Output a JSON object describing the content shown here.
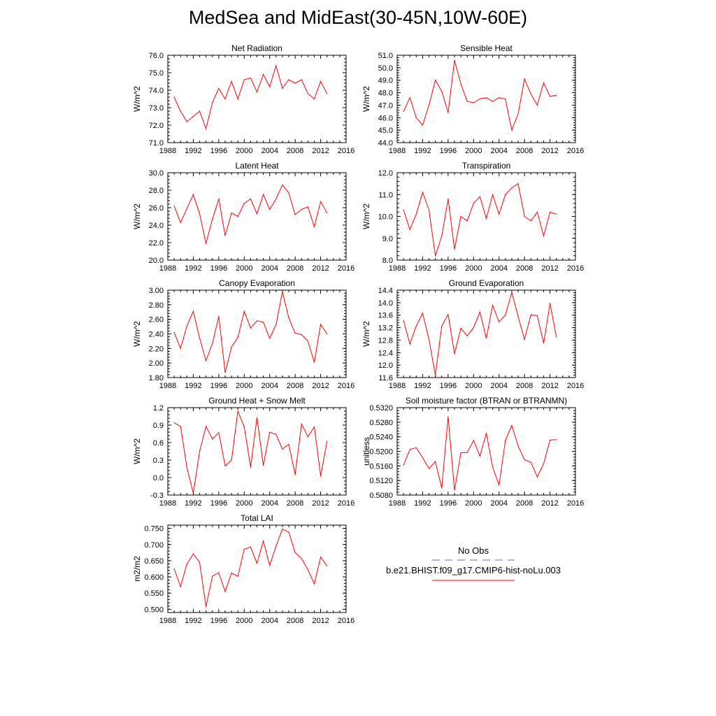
{
  "title": "MedSea and MidEast(30-45N,10W-60E)",
  "colors": {
    "model_line": "#ff0000",
    "obs_line": "#6666aa",
    "axes": "#000000"
  },
  "legend": {
    "obs_label": "No Obs",
    "model_label": "b.e21.BHIST.f09_g17.CMIP6-hist-noLu.003"
  },
  "chart_data": [
    {
      "type": "line",
      "title": "Net Radiation",
      "ylabel": "W/m^2",
      "xlim": [
        1988,
        2016
      ],
      "ylim": [
        71.0,
        76.0
      ],
      "xticks": [
        "1988",
        "1992",
        "1996",
        "2000",
        "2004",
        "2008",
        "2012",
        "2016"
      ],
      "yticks": [
        "71.0",
        "72.0",
        "73.0",
        "74.0",
        "75.0",
        "76.0"
      ],
      "series": [
        {
          "x": [
            1989,
            1990,
            1991,
            1992,
            1993,
            1994,
            1995,
            1996,
            1997,
            1998,
            1999,
            2000,
            2001,
            2002,
            2003,
            2004,
            2005,
            2006,
            2007,
            2008,
            2009,
            2010,
            2011,
            2012,
            2013
          ],
          "values": [
            73.6,
            72.8,
            72.2,
            72.5,
            72.8,
            71.8,
            73.3,
            74.1,
            73.5,
            74.5,
            73.5,
            74.6,
            74.7,
            73.9,
            74.9,
            74.2,
            75.4,
            74.1,
            74.6,
            74.4,
            74.6,
            73.8,
            73.5,
            74.5,
            73.8
          ]
        }
      ]
    },
    {
      "type": "line",
      "title": "Sensible Heat",
      "ylabel": "W/m^2",
      "xlim": [
        1988,
        2016
      ],
      "ylim": [
        44.0,
        51.0
      ],
      "xticks": [
        "1988",
        "1992",
        "1996",
        "2000",
        "2004",
        "2008",
        "2012",
        "2016"
      ],
      "yticks": [
        "44.0",
        "45.0",
        "46.0",
        "47.0",
        "48.0",
        "49.0",
        "50.0",
        "51.0"
      ],
      "series": [
        {
          "x": [
            1989,
            1990,
            1991,
            1992,
            1993,
            1994,
            1995,
            1996,
            1997,
            1998,
            1999,
            2000,
            2001,
            2002,
            2003,
            2004,
            2005,
            2006,
            2007,
            2008,
            2009,
            2010,
            2011,
            2012,
            2013
          ],
          "values": [
            46.5,
            47.6,
            46.0,
            45.4,
            47.0,
            49.0,
            48.1,
            46.4,
            50.6,
            48.7,
            47.3,
            47.2,
            47.5,
            47.6,
            47.3,
            47.6,
            47.5,
            45.0,
            46.3,
            49.1,
            47.9,
            47.0,
            48.8,
            47.7,
            47.8
          ]
        }
      ]
    },
    {
      "type": "line",
      "title": "Latent Heat",
      "ylabel": "W/m^2",
      "xlim": [
        1988,
        2016
      ],
      "ylim": [
        20.0,
        30.0
      ],
      "xticks": [
        "1988",
        "1992",
        "1996",
        "2000",
        "2004",
        "2008",
        "2012",
        "2016"
      ],
      "yticks": [
        "20.0",
        "22.0",
        "24.0",
        "26.0",
        "28.0",
        "30.0"
      ],
      "series": [
        {
          "x": [
            1989,
            1990,
            1991,
            1992,
            1993,
            1994,
            1995,
            1996,
            1997,
            1998,
            1999,
            2000,
            2001,
            2002,
            2003,
            2004,
            2005,
            2006,
            2007,
            2008,
            2009,
            2010,
            2011,
            2012,
            2013
          ],
          "values": [
            26.2,
            24.3,
            25.9,
            27.5,
            25.3,
            21.9,
            24.7,
            27.0,
            22.8,
            25.4,
            25.0,
            26.5,
            27.0,
            25.3,
            27.5,
            25.8,
            27.0,
            28.6,
            27.7,
            25.2,
            25.8,
            26.1,
            23.8,
            26.7,
            25.4
          ]
        }
      ]
    },
    {
      "type": "line",
      "title": "Transpiration",
      "ylabel": "W/m^2",
      "xlim": [
        1988,
        2016
      ],
      "ylim": [
        8.0,
        12.0
      ],
      "xticks": [
        "1988",
        "1992",
        "1996",
        "2000",
        "2004",
        "2008",
        "2012",
        "2016"
      ],
      "yticks": [
        "8.0",
        "9.0",
        "10.0",
        "11.0",
        "12.0"
      ],
      "series": [
        {
          "x": [
            1989,
            1990,
            1991,
            1992,
            1993,
            1994,
            1995,
            1996,
            1997,
            1998,
            1999,
            2000,
            2001,
            2002,
            2003,
            2004,
            2005,
            2006,
            2007,
            2008,
            2009,
            2010,
            2011,
            2012,
            2013
          ],
          "values": [
            10.3,
            9.4,
            10.1,
            11.1,
            10.3,
            8.2,
            9.1,
            10.8,
            8.5,
            10.0,
            9.8,
            10.6,
            10.9,
            9.9,
            11.0,
            10.1,
            11.0,
            11.3,
            11.5,
            10.0,
            9.8,
            10.2,
            9.1,
            10.2,
            10.1
          ]
        }
      ]
    },
    {
      "type": "line",
      "title": "Canopy Evaporation",
      "ylabel": "W/m^2",
      "xlim": [
        1988,
        2016
      ],
      "ylim": [
        1.8,
        3.0
      ],
      "xticks": [
        "1988",
        "1992",
        "1996",
        "2000",
        "2004",
        "2008",
        "2012",
        "2016"
      ],
      "yticks": [
        "1.80",
        "2.00",
        "2.20",
        "2.40",
        "2.60",
        "2.80",
        "3.00"
      ],
      "series": [
        {
          "x": [
            1989,
            1990,
            1991,
            1992,
            1993,
            1994,
            1995,
            1996,
            1997,
            1998,
            1999,
            2000,
            2001,
            2002,
            2003,
            2004,
            2005,
            2006,
            2007,
            2008,
            2009,
            2010,
            2011,
            2012,
            2013
          ],
          "values": [
            2.42,
            2.2,
            2.51,
            2.71,
            2.34,
            2.03,
            2.27,
            2.64,
            1.87,
            2.22,
            2.35,
            2.71,
            2.48,
            2.58,
            2.56,
            2.34,
            2.53,
            2.98,
            2.62,
            2.41,
            2.39,
            2.3,
            2.01,
            2.53,
            2.4
          ]
        }
      ]
    },
    {
      "type": "line",
      "title": "Ground Evaporation",
      "ylabel": "W/m^2",
      "xlim": [
        1988,
        2016
      ],
      "ylim": [
        11.6,
        14.4
      ],
      "xticks": [
        "1988",
        "1992",
        "1996",
        "2000",
        "2004",
        "2008",
        "2012",
        "2016"
      ],
      "yticks": [
        "11.6",
        "12.0",
        "12.4",
        "12.8",
        "13.2",
        "13.6",
        "14.0",
        "14.4"
      ],
      "series": [
        {
          "x": [
            1989,
            1990,
            1991,
            1992,
            1993,
            1994,
            1995,
            1996,
            1997,
            1998,
            1999,
            2000,
            2001,
            2002,
            2003,
            2004,
            2005,
            2006,
            2007,
            2008,
            2009,
            2010,
            2011,
            2012,
            2013
          ],
          "values": [
            13.43,
            12.68,
            13.25,
            13.66,
            12.82,
            11.68,
            13.25,
            13.62,
            12.36,
            13.18,
            12.94,
            13.2,
            13.7,
            12.86,
            13.92,
            13.38,
            13.6,
            14.33,
            13.56,
            12.82,
            13.61,
            13.58,
            12.7,
            13.98,
            12.9
          ]
        }
      ]
    },
    {
      "type": "line",
      "title": "Ground Heat + Snow Melt",
      "ylabel": "W/m^2",
      "xlim": [
        1988,
        2016
      ],
      "ylim": [
        -0.3,
        1.2
      ],
      "xticks": [
        "1988",
        "1992",
        "1996",
        "2000",
        "2004",
        "2008",
        "2012",
        "2016"
      ],
      "yticks": [
        "-0.3",
        "0.0",
        "0.3",
        "0.6",
        "0.9",
        "1.2"
      ],
      "series": [
        {
          "x": [
            1989,
            1990,
            1991,
            1992,
            1993,
            1994,
            1995,
            1996,
            1997,
            1998,
            1999,
            2000,
            2001,
            2002,
            2003,
            2004,
            2005,
            2006,
            2007,
            2008,
            2009,
            2010,
            2011,
            2012,
            2013
          ],
          "values": [
            0.94,
            0.88,
            0.17,
            -0.27,
            0.45,
            0.88,
            0.66,
            0.77,
            0.2,
            0.3,
            1.14,
            0.87,
            0.18,
            1.03,
            0.21,
            0.78,
            0.74,
            0.49,
            0.57,
            0.05,
            0.92,
            0.7,
            0.87,
            0.03,
            0.62
          ]
        }
      ]
    },
    {
      "type": "line",
      "title": "Soil moisture factor (BTRAN or BTRANMN)",
      "ylabel": "unitless",
      "xlim": [
        1988,
        2016
      ],
      "ylim": [
        0.508,
        0.532
      ],
      "xticks": [
        "1988",
        "1992",
        "1996",
        "2000",
        "2004",
        "2008",
        "2012",
        "2016"
      ],
      "yticks": [
        "0.5080",
        "0.5120",
        "0.5160",
        "0.5200",
        "0.5240",
        "0.5280",
        "0.5320"
      ],
      "series": [
        {
          "x": [
            1989,
            1990,
            1991,
            1992,
            1993,
            1994,
            1995,
            1996,
            1997,
            1998,
            1999,
            2000,
            2001,
            2002,
            2003,
            2004,
            2005,
            2006,
            2007,
            2008,
            2009,
            2010,
            2011,
            2012,
            2013
          ],
          "values": [
            0.5162,
            0.5205,
            0.521,
            0.5183,
            0.5153,
            0.5172,
            0.5099,
            0.5295,
            0.5093,
            0.5196,
            0.5197,
            0.523,
            0.5187,
            0.525,
            0.5157,
            0.5107,
            0.523,
            0.5271,
            0.5215,
            0.5177,
            0.517,
            0.513,
            0.5166,
            0.5231,
            0.5232
          ]
        }
      ]
    },
    {
      "type": "line",
      "title": "Total LAI",
      "ylabel": "m2/m2",
      "xlim": [
        1988,
        2016
      ],
      "ylim": [
        0.49,
        0.76
      ],
      "xticks": [
        "1988",
        "1992",
        "1996",
        "2000",
        "2004",
        "2008",
        "2012",
        "2016"
      ],
      "yticks": [
        "0.500",
        "0.550",
        "0.600",
        "0.650",
        "0.700",
        "0.750"
      ],
      "series": [
        {
          "x": [
            1989,
            1990,
            1991,
            1992,
            1993,
            1994,
            1995,
            1996,
            1997,
            1998,
            1999,
            2000,
            2001,
            2002,
            2003,
            2004,
            2005,
            2006,
            2007,
            2008,
            2009,
            2010,
            2011,
            2012,
            2013
          ],
          "values": [
            0.625,
            0.57,
            0.64,
            0.671,
            0.645,
            0.508,
            0.602,
            0.613,
            0.555,
            0.612,
            0.602,
            0.686,
            0.692,
            0.642,
            0.711,
            0.636,
            0.695,
            0.748,
            0.738,
            0.675,
            0.657,
            0.622,
            0.579,
            0.661,
            0.634
          ]
        }
      ]
    }
  ]
}
